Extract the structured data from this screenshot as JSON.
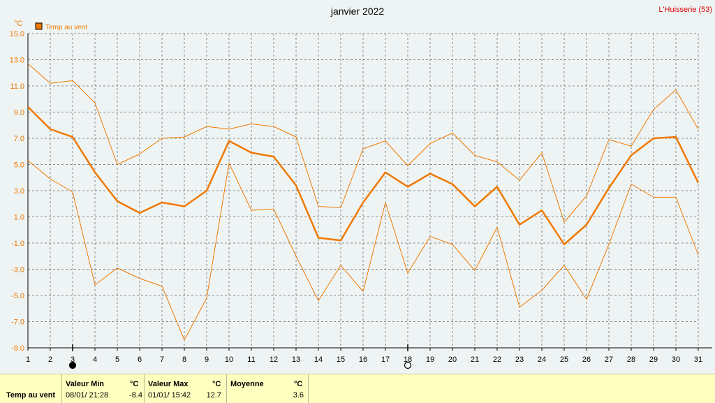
{
  "station": "L'Huisserie (53)",
  "chart_data": {
    "type": "line",
    "title": "janvier 2022",
    "ylabel": "°C",
    "xlabel": "",
    "x": [
      1,
      2,
      3,
      4,
      5,
      6,
      7,
      8,
      9,
      10,
      11,
      12,
      13,
      14,
      15,
      16,
      17,
      18,
      19,
      20,
      21,
      22,
      23,
      24,
      25,
      26,
      27,
      28,
      29,
      30,
      31
    ],
    "ylim": [
      -9,
      15
    ],
    "yticks": [
      "15.0",
      "13.0",
      "11.0",
      "9.0",
      "7.0",
      "5.0",
      "3.0",
      "1.0",
      "-1.0",
      "-3.0",
      "-5.0",
      "-7.0",
      "-9.0"
    ],
    "grid": true,
    "legend": "top-left",
    "series": [
      {
        "name": "Temp au vent",
        "color": "#f07800",
        "values": [
          9.4,
          7.7,
          7.1,
          4.4,
          2.2,
          1.3,
          2.1,
          1.8,
          3.0,
          6.8,
          5.9,
          5.6,
          3.4,
          -0.6,
          -0.8,
          2.1,
          4.4,
          3.3,
          4.3,
          3.5,
          1.8,
          3.3,
          0.4,
          1.5,
          -1.1,
          0.4,
          3.2,
          5.7,
          7.0,
          7.1,
          3.6
        ]
      },
      {
        "role": "max",
        "color": "#f07800",
        "values": [
          12.7,
          11.2,
          11.4,
          9.7,
          5.0,
          5.8,
          7.0,
          7.1,
          7.9,
          7.7,
          8.1,
          7.9,
          7.1,
          1.8,
          1.7,
          6.2,
          6.8,
          4.9,
          6.6,
          7.4,
          5.7,
          5.2,
          3.8,
          5.9,
          0.6,
          2.6,
          6.9,
          6.4,
          9.2,
          10.7,
          7.7
        ]
      },
      {
        "role": "min",
        "color": "#f07800",
        "values": [
          5.3,
          3.9,
          2.9,
          -4.2,
          -2.9,
          -3.7,
          -4.3,
          -8.4,
          -5.2,
          5.1,
          1.5,
          1.6,
          -2.0,
          -5.4,
          -2.7,
          -4.7,
          2.1,
          -3.3,
          -0.5,
          -1.1,
          -3.1,
          0.2,
          -5.9,
          -4.6,
          -2.7,
          -5.3,
          -1.1,
          3.5,
          2.5,
          2.5,
          -1.9
        ]
      }
    ],
    "moon_phases": [
      {
        "day": 3,
        "phase": "new-moon"
      },
      {
        "day": 18,
        "phase": "full-moon"
      }
    ]
  },
  "summary": {
    "row_label": "Temp au vent",
    "min": {
      "label": "Valeur Min",
      "unit": "°C",
      "date": "08/01/  21:28",
      "value": "-8.4"
    },
    "max": {
      "label": "Valeur Max",
      "unit": "°C",
      "date": "01/01/  15:42",
      "value": "12.7"
    },
    "avg": {
      "label": "Moyenne",
      "unit": "°C",
      "value": "3.6"
    }
  }
}
